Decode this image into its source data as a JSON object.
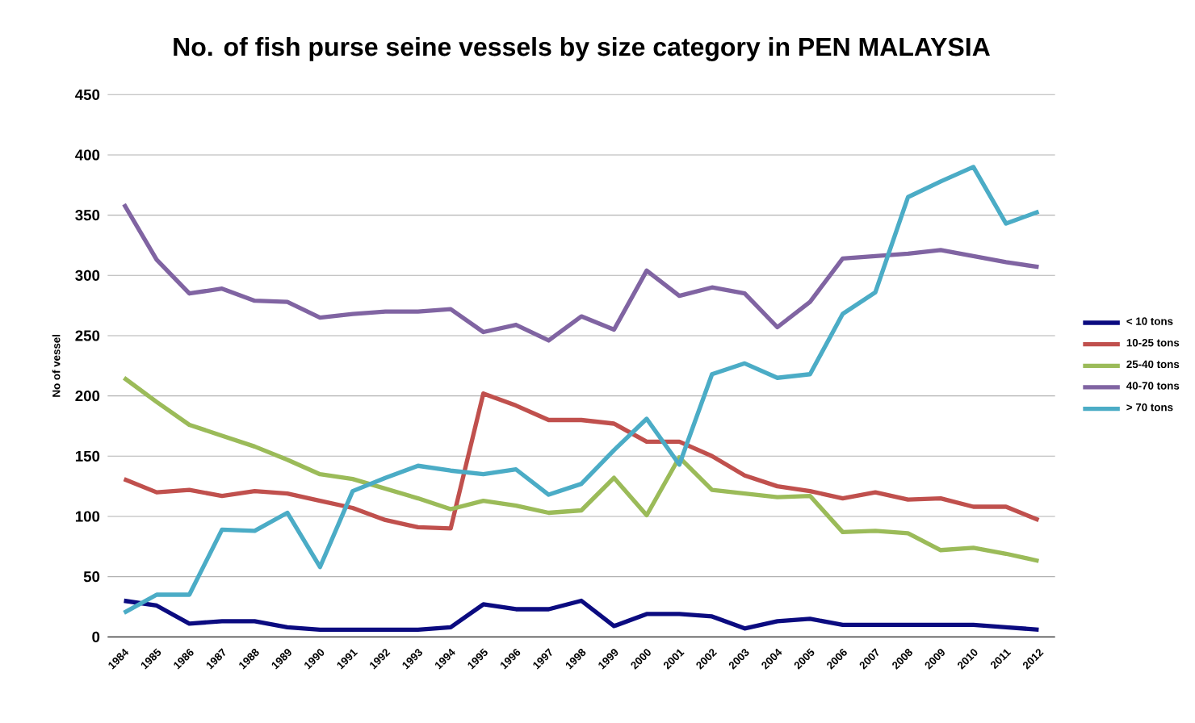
{
  "chart_data": {
    "type": "line",
    "title": "No. of fish purse seine vessels by size category  in  PEN MALAYSIA",
    "ylabel": "No of vessel",
    "categories": [
      "1984",
      "1985",
      "1986",
      "1987",
      "1988",
      "1989",
      "1990",
      "1991",
      "1992",
      "1993",
      "1994",
      "1995",
      "1996",
      "1997",
      "1998",
      "1999",
      "2000",
      "2001",
      "2002",
      "2003",
      "2004",
      "2005",
      "2006",
      "2007",
      "2008",
      "2009",
      "2010",
      "2011",
      "2012"
    ],
    "series": [
      {
        "name": "< 10 tons",
        "color": "#0b0b80",
        "values": [
          30,
          26,
          11,
          13,
          13,
          8,
          6,
          6,
          6,
          6,
          8,
          27,
          23,
          23,
          30,
          9,
          19,
          19,
          17,
          7,
          13,
          15,
          10,
          10,
          10,
          10,
          10,
          8,
          6
        ]
      },
      {
        "name": "10-25 tons",
        "color": "#c0504d",
        "values": [
          131,
          120,
          122,
          117,
          121,
          119,
          113,
          107,
          97,
          91,
          90,
          202,
          192,
          180,
          180,
          177,
          162,
          162,
          150,
          134,
          125,
          121,
          115,
          120,
          114,
          115,
          108,
          108,
          97
        ]
      },
      {
        "name": "25-40 tons",
        "color": "#9bbb59",
        "values": [
          215,
          195,
          176,
          167,
          158,
          147,
          135,
          131,
          123,
          115,
          106,
          113,
          109,
          103,
          105,
          132,
          101,
          149,
          122,
          119,
          116,
          117,
          87,
          88,
          86,
          72,
          74,
          69,
          63
        ]
      },
      {
        "name": "40-70 tons",
        "color": "#8064a2",
        "values": [
          359,
          313,
          285,
          289,
          279,
          278,
          265,
          268,
          270,
          270,
          272,
          253,
          259,
          246,
          266,
          255,
          304,
          283,
          290,
          285,
          257,
          278,
          314,
          316,
          318,
          321,
          316,
          311,
          307
        ]
      },
      {
        "name": "> 70 tons",
        "color": "#4bacc6",
        "values": [
          20,
          35,
          35,
          89,
          88,
          103,
          58,
          121,
          132,
          142,
          138,
          135,
          139,
          118,
          127,
          155,
          181,
          143,
          218,
          227,
          215,
          218,
          268,
          286,
          365,
          378,
          390,
          343,
          353
        ]
      }
    ],
    "ylim": [
      0,
      450
    ],
    "yticks": [
      0,
      50,
      100,
      150,
      200,
      250,
      300,
      350,
      400,
      450
    ],
    "grid": "y",
    "legend": "right",
    "marker": "none",
    "line_style": "solid"
  }
}
